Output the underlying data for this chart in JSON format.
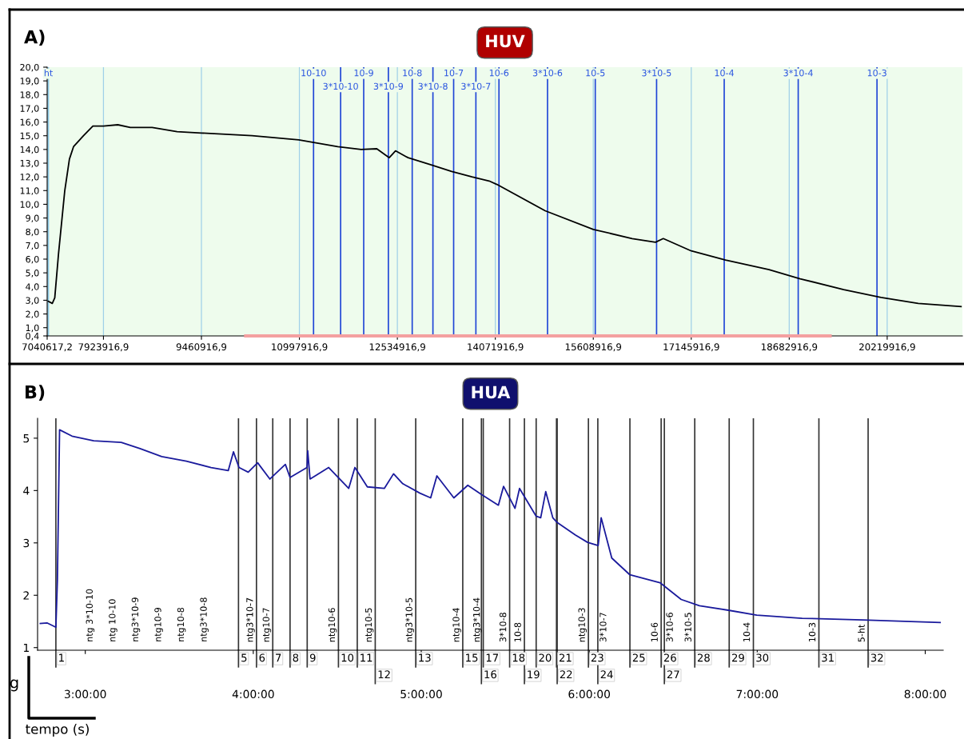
{
  "chart_data": [
    {
      "type": "line",
      "title": "HUV",
      "series": [
        {
          "color": "#000000",
          "x": [
            7047700,
            7121000,
            7160000,
            7219000,
            7317000,
            7390000,
            7454000,
            7611000,
            7758000,
            7924000,
            8149000,
            8345000,
            8688000,
            9079000,
            9461000,
            10254000,
            10988000,
            11600000,
            11967000,
            12212000,
            12408000,
            12506000,
            12702000,
            13045000,
            13387000,
            13705000,
            13975000,
            14096000,
            14853000,
            15609000,
            16219000,
            16585000,
            16707000,
            17146000,
            17683000,
            18366000,
            18854000,
            19537000,
            20122000,
            20707000,
            21390000
          ],
          "values": [
            2.95,
            2.77,
            3.18,
            6.4,
            11.0,
            13.3,
            14.2,
            15.0,
            15.7,
            15.7,
            15.8,
            15.6,
            15.6,
            15.3,
            15.2,
            15.0,
            14.7,
            14.2,
            14.0,
            14.05,
            13.4,
            13.9,
            13.4,
            12.9,
            12.4,
            12.0,
            11.7,
            11.45,
            9.53,
            8.17,
            7.5,
            7.23,
            7.5,
            6.6,
            5.93,
            5.24,
            4.57,
            3.78,
            3.21,
            2.77,
            2.54
          ]
        },
        {
          "type": "line",
          "color": "#f4a0a0",
          "x": [
            10130000,
            19350000
          ],
          "values": [
            0.4,
            0.4
          ]
        }
      ],
      "xlim": [
        7040617.2,
        21400000
      ],
      "ylim": [
        0.4,
        20
      ],
      "xticks": [
        {
          "value": 7040617.2,
          "label": "7040617,2"
        },
        {
          "value": 7923916.9,
          "label": "7923916,9"
        },
        {
          "value": 9460916.9,
          "label": "9460916,9"
        },
        {
          "value": 10997916.9,
          "label": "10997916,9"
        },
        {
          "value": 12534916.9,
          "label": "12534916,9"
        },
        {
          "value": 14071916.9,
          "label": "14071916,9"
        },
        {
          "value": 15608916.9,
          "label": "15608916,9"
        },
        {
          "value": 17145916.9,
          "label": "17145916,9"
        },
        {
          "value": 18682916.9,
          "label": "18682916,9"
        },
        {
          "value": 20219916.9,
          "label": "20219916,9"
        }
      ],
      "yticks": [
        {
          "value": 0.4,
          "label": "0,4"
        },
        {
          "value": 1,
          "label": "1,0"
        },
        {
          "value": 2,
          "label": "2,0"
        },
        {
          "value": 3,
          "label": "3,0"
        },
        {
          "value": 4,
          "label": "4,0"
        },
        {
          "value": 5,
          "label": "5,0"
        },
        {
          "value": 6,
          "label": "6,0"
        },
        {
          "value": 7,
          "label": "7,0"
        },
        {
          "value": 8,
          "label": "8,0"
        },
        {
          "value": 9,
          "label": "9,0"
        },
        {
          "value": 10,
          "label": "10,0"
        },
        {
          "value": 11,
          "label": "11,0"
        },
        {
          "value": 12,
          "label": "12,0"
        },
        {
          "value": 13,
          "label": "13,0"
        },
        {
          "value": 14,
          "label": "14,0"
        },
        {
          "value": 15,
          "label": "15,0"
        },
        {
          "value": 16,
          "label": "16,0"
        },
        {
          "value": 17,
          "label": "17,0"
        },
        {
          "value": 18,
          "label": "18,0"
        },
        {
          "value": 19,
          "label": "19,0"
        },
        {
          "value": 20,
          "label": "20,0"
        }
      ],
      "grid": "x",
      "ref_lines": [
        {
          "axis": "x",
          "value": 7060000,
          "color": "#8ec9e6"
        },
        {
          "axis": "x",
          "value": 11220000,
          "color": "#1f45d6"
        },
        {
          "axis": "x",
          "value": 11645000,
          "color": "#1f45d6"
        },
        {
          "axis": "x",
          "value": 12007000,
          "color": "#1f45d6"
        },
        {
          "axis": "x",
          "value": 12394000,
          "color": "#1f45d6"
        },
        {
          "axis": "x",
          "value": 12768000,
          "color": "#1f45d6"
        },
        {
          "axis": "x",
          "value": 13093000,
          "color": "#1f45d6"
        },
        {
          "axis": "x",
          "value": 13418000,
          "color": "#1f45d6"
        },
        {
          "axis": "x",
          "value": 13767000,
          "color": "#1f45d6"
        },
        {
          "axis": "x",
          "value": 14129000,
          "color": "#1f45d6"
        },
        {
          "axis": "x",
          "value": 14891000,
          "color": "#1f45d6"
        },
        {
          "axis": "x",
          "value": 15640000,
          "color": "#1f45d6"
        },
        {
          "axis": "x",
          "value": 16602000,
          "color": "#1f45d6"
        },
        {
          "axis": "x",
          "value": 17663000,
          "color": "#1f45d6"
        },
        {
          "axis": "x",
          "value": 18824000,
          "color": "#1f45d6"
        },
        {
          "axis": "x",
          "value": 20060000,
          "color": "#1f45d6"
        }
      ],
      "annotations": [
        "A)",
        {
          "text": "ht",
          "x": 7060000,
          "y": 20
        },
        {
          "text": "10-10",
          "x": 11220000,
          "y": 20
        },
        {
          "text": "3*10-10",
          "x": 11645000,
          "y": 20
        },
        {
          "text": "10-9",
          "x": 12007000,
          "y": 20
        },
        {
          "text": "3*10-9",
          "x": 12394000,
          "y": 20
        },
        {
          "text": "10-8",
          "x": 12768000,
          "y": 20
        },
        {
          "text": "3*10-8",
          "x": 13093000,
          "y": 20
        },
        {
          "text": "10-7",
          "x": 13418000,
          "y": 20
        },
        {
          "text": "3*10-7",
          "x": 13767000,
          "y": 20
        },
        {
          "text": "10-6",
          "x": 14129000,
          "y": 20
        },
        {
          "text": "3*10-6",
          "x": 14891000,
          "y": 20
        },
        {
          "text": "10-5",
          "x": 15640000,
          "y": 20
        },
        {
          "text": "3*10-5",
          "x": 16602000,
          "y": 20
        },
        {
          "text": "10-4",
          "x": 17663000,
          "y": 20
        },
        {
          "text": "3*10-4",
          "x": 18824000,
          "y": 20
        },
        {
          "text": "10-3",
          "x": 20060000,
          "y": 20
        }
      ]
    },
    {
      "type": "line",
      "title": "HUA",
      "color": "#1a1a9c",
      "x": [
        2.728,
        2.774,
        2.825,
        2.834,
        2.847,
        2.921,
        3.05,
        3.214,
        3.326,
        3.455,
        3.602,
        3.749,
        3.851,
        3.882,
        3.915,
        3.97,
        4.026,
        4.099,
        4.191,
        4.219,
        4.32,
        4.324,
        4.338,
        4.449,
        4.568,
        4.605,
        4.679,
        4.78,
        4.835,
        4.89,
        4.992,
        5.056,
        5.093,
        5.194,
        5.277,
        5.36,
        5.459,
        5.49,
        5.558,
        5.585,
        5.684,
        5.711,
        5.741,
        5.783,
        5.809,
        5.918,
        5.99,
        6.053,
        6.071,
        6.134,
        6.242,
        6.421,
        6.547,
        6.656,
        6.835,
        6.997,
        7.267,
        7.627,
        8.093
      ],
      "values": [
        1.46,
        1.47,
        1.39,
        2.28,
        5.16,
        5.04,
        4.95,
        4.92,
        4.8,
        4.65,
        4.56,
        4.44,
        4.38,
        4.74,
        4.44,
        4.35,
        4.53,
        4.22,
        4.5,
        4.25,
        4.44,
        4.76,
        4.22,
        4.44,
        4.04,
        4.44,
        4.07,
        4.04,
        4.32,
        4.13,
        3.95,
        3.86,
        4.28,
        3.86,
        4.1,
        3.92,
        3.72,
        4.08,
        3.66,
        4.04,
        3.51,
        3.48,
        3.98,
        3.48,
        3.39,
        3.15,
        3.01,
        2.95,
        3.48,
        2.71,
        2.39,
        2.24,
        1.92,
        1.8,
        1.71,
        1.62,
        1.56,
        1.53,
        1.48
      ],
      "xlim": [
        2.716,
        8.107
      ],
      "ylim": [
        0.95,
        5.38
      ],
      "xticks": [
        {
          "value": 3,
          "label": "3:00:00"
        },
        {
          "value": 4,
          "label": "4:00:00"
        },
        {
          "value": 5,
          "label": "5:00:00"
        },
        {
          "value": 6,
          "label": "6:00:00"
        },
        {
          "value": 7,
          "label": "7:00:00"
        },
        {
          "value": 8,
          "label": "8:00:00"
        }
      ],
      "yticks": [
        1,
        2,
        3,
        4,
        5
      ],
      "ref_lines": [
        {
          "axis": "x",
          "value": 2.825,
          "color": "#333333"
        },
        {
          "axis": "x",
          "value": 3.912,
          "color": "#333333"
        },
        {
          "axis": "x",
          "value": 4.019,
          "color": "#333333"
        },
        {
          "axis": "x",
          "value": 4.116,
          "color": "#333333"
        },
        {
          "axis": "x",
          "value": 4.219,
          "color": "#333333"
        },
        {
          "axis": "x",
          "value": 4.321,
          "color": "#333333"
        },
        {
          "axis": "x",
          "value": 4.507,
          "color": "#333333"
        },
        {
          "axis": "x",
          "value": 4.619,
          "color": "#333333"
        },
        {
          "axis": "x",
          "value": 4.726,
          "color": "#333333"
        },
        {
          "axis": "x",
          "value": 4.967,
          "color": "#333333"
        },
        {
          "axis": "x",
          "value": 5.247,
          "color": "#333333"
        },
        {
          "axis": "x",
          "value": 5.358,
          "color": "#333333"
        },
        {
          "axis": "x",
          "value": 5.369,
          "color": "#333333"
        },
        {
          "axis": "x",
          "value": 5.526,
          "color": "#333333"
        },
        {
          "axis": "x",
          "value": 5.614,
          "color": "#333333"
        },
        {
          "axis": "x",
          "value": 5.684,
          "color": "#333333"
        },
        {
          "axis": "x",
          "value": 5.805,
          "color": "#333333"
        },
        {
          "axis": "x",
          "value": 5.809,
          "color": "#333333"
        },
        {
          "axis": "x",
          "value": 5.995,
          "color": "#333333"
        },
        {
          "axis": "x",
          "value": 6.051,
          "color": "#333333"
        },
        {
          "axis": "x",
          "value": 6.242,
          "color": "#333333"
        },
        {
          "axis": "x",
          "value": 6.428,
          "color": "#333333"
        },
        {
          "axis": "x",
          "value": 6.447,
          "color": "#333333"
        },
        {
          "axis": "x",
          "value": 6.628,
          "color": "#333333"
        },
        {
          "axis": "x",
          "value": 6.833,
          "color": "#333333"
        },
        {
          "axis": "x",
          "value": 6.977,
          "color": "#333333"
        },
        {
          "axis": "x",
          "value": 7.367,
          "color": "#333333"
        },
        {
          "axis": "x",
          "value": 7.66,
          "color": "#333333"
        }
      ],
      "annotations": [
        "B)",
        "g",
        "tempo (s)",
        "ntg 3*10-10",
        "ntg 10-10",
        "ntg3*10-9",
        "ntg10-9",
        "ntg10-8",
        "ntg3*10-8",
        {
          "text": "1",
          "x": 2.825,
          "y": 0.95
        },
        {
          "text": "5",
          "x": 3.912,
          "y": 0.95
        },
        {
          "text": "6",
          "x": 4.019,
          "y": 0.95
        },
        {
          "text": "7",
          "x": 4.116,
          "y": 0.95
        },
        {
          "text": "8",
          "x": 4.219,
          "y": 0.95
        },
        {
          "text": "9",
          "x": 4.321,
          "y": 0.95
        },
        {
          "text": "10",
          "x": 4.507,
          "y": 0.95
        },
        {
          "text": "11",
          "x": 4.619,
          "y": 0.95
        },
        {
          "text": "12",
          "x": 4.726,
          "y": 0.95
        },
        {
          "text": "13",
          "x": 4.967,
          "y": 0.95
        },
        {
          "text": "15",
          "x": 5.247,
          "y": 0.95
        },
        {
          "text": "16",
          "x": 5.358,
          "y": 0.95
        },
        {
          "text": "17",
          "x": 5.369,
          "y": 0.95
        },
        {
          "text": "18",
          "x": 5.526,
          "y": 0.95
        },
        {
          "text": "19",
          "x": 5.614,
          "y": 0.95
        },
        {
          "text": "20",
          "x": 5.684,
          "y": 0.95
        },
        {
          "text": "21",
          "x": 5.805,
          "y": 0.95
        },
        {
          "text": "22",
          "x": 5.809,
          "y": 0.95
        },
        {
          "text": "23",
          "x": 5.995,
          "y": 0.95
        },
        {
          "text": "24",
          "x": 6.051,
          "y": 0.95
        },
        {
          "text": "25",
          "x": 6.242,
          "y": 0.95
        },
        {
          "text": "26",
          "x": 6.428,
          "y": 0.95
        },
        {
          "text": "27",
          "x": 6.447,
          "y": 0.95
        },
        {
          "text": "28",
          "x": 6.628,
          "y": 0.95
        },
        {
          "text": "29",
          "x": 6.833,
          "y": 0.95
        },
        {
          "text": "30",
          "x": 6.977,
          "y": 0.95
        },
        {
          "text": "31",
          "x": 7.367,
          "y": 0.95
        },
        {
          "text": "32",
          "x": 7.66,
          "y": 0.95
        },
        {
          "text": "ntg3*10-7",
          "x": 4.019,
          "y": 1.1
        },
        {
          "text": "ntg10-7",
          "x": 4.116,
          "y": 1.1
        },
        {
          "text": "ntg10-6",
          "x": 4.507,
          "y": 1.1
        },
        {
          "text": "ntg10-5",
          "x": 4.726,
          "y": 1.1
        },
        {
          "text": "ntg3*10-5",
          "x": 4.967,
          "y": 1.1
        },
        {
          "text": "ntg10-4",
          "x": 5.247,
          "y": 1.1
        },
        {
          "text": "ntg3*10-4",
          "x": 5.369,
          "y": 1.1
        },
        {
          "text": "3*10-8",
          "x": 5.526,
          "y": 1.1
        },
        {
          "text": "10-8",
          "x": 5.614,
          "y": 1.1
        },
        {
          "text": "ntg10-3",
          "x": 5.995,
          "y": 1.1
        },
        {
          "text": "3*10-7",
          "x": 6.051,
          "y": 1.1
        },
        {
          "text": "10-6",
          "x": 6.428,
          "y": 1.1
        },
        {
          "text": "3*10-6",
          "x": 6.447,
          "y": 1.1
        },
        {
          "text": "3*10-5",
          "x": 6.628,
          "y": 1.1
        },
        {
          "text": "10-4",
          "x": 6.977,
          "y": 1.1
        },
        {
          "text": "10-3",
          "x": 7.367,
          "y": 1.1
        },
        {
          "text": "5-ht",
          "x": 7.66,
          "y": 1.1
        }
      ]
    }
  ]
}
